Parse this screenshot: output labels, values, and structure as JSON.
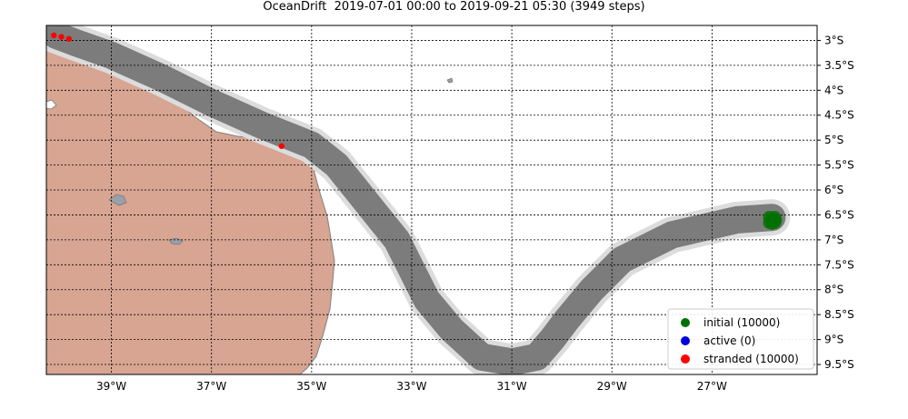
{
  "title": "OceanDrift  2019-07-01 00:00 to 2019-09-21 05:30 (3949 steps)",
  "map": {
    "projection": "PlateCarree",
    "lon_range": [
      -40.3,
      -24.9
    ],
    "lat_range": [
      -9.7,
      -2.7
    ],
    "grid": true,
    "land_color": "#d7a592",
    "coast_color": "#808080",
    "ocean_color": "#ffffff",
    "trajectory_color": "#7c7c7c",
    "lon_ticks": [
      {
        "value": -39,
        "label": "39°W"
      },
      {
        "value": -37,
        "label": "37°W"
      },
      {
        "value": -35,
        "label": "35°W"
      },
      {
        "value": -33,
        "label": "33°W"
      },
      {
        "value": -31,
        "label": "31°W"
      },
      {
        "value": -29,
        "label": "29°W"
      },
      {
        "value": -27,
        "label": "27°W"
      }
    ],
    "lat_ticks": [
      {
        "value": -3.0,
        "label": "3°S"
      },
      {
        "value": -3.5,
        "label": "3.5°S"
      },
      {
        "value": -4.0,
        "label": "4°S"
      },
      {
        "value": -4.5,
        "label": "4.5°S"
      },
      {
        "value": -5.0,
        "label": "5°S"
      },
      {
        "value": -5.5,
        "label": "5.5°S"
      },
      {
        "value": -6.0,
        "label": "6°S"
      },
      {
        "value": -6.5,
        "label": "6.5°S"
      },
      {
        "value": -7.0,
        "label": "7°S"
      },
      {
        "value": -7.5,
        "label": "7.5°S"
      },
      {
        "value": -8.0,
        "label": "8°S"
      },
      {
        "value": -8.5,
        "label": "8.5°S"
      },
      {
        "value": -9.0,
        "label": "9°S"
      },
      {
        "value": -9.5,
        "label": "9.5°S"
      }
    ],
    "trajectory": [
      {
        "lon": -25.8,
        "lat": -6.55
      },
      {
        "lon": -26.5,
        "lat": -6.6
      },
      {
        "lon": -27.8,
        "lat": -6.9
      },
      {
        "lon": -28.8,
        "lat": -7.4
      },
      {
        "lon": -29.4,
        "lat": -8.0
      },
      {
        "lon": -29.9,
        "lat": -8.6
      },
      {
        "lon": -30.2,
        "lat": -9.0
      },
      {
        "lon": -30.5,
        "lat": -9.35
      },
      {
        "lon": -31.0,
        "lat": -9.45
      },
      {
        "lon": -31.6,
        "lat": -9.35
      },
      {
        "lon": -32.2,
        "lat": -8.8
      },
      {
        "lon": -32.7,
        "lat": -8.2
      },
      {
        "lon": -33.0,
        "lat": -7.6
      },
      {
        "lon": -33.3,
        "lat": -7.0
      },
      {
        "lon": -33.7,
        "lat": -6.5
      },
      {
        "lon": -34.1,
        "lat": -6.0
      },
      {
        "lon": -34.5,
        "lat": -5.5
      },
      {
        "lon": -35.0,
        "lat": -5.1
      },
      {
        "lon": -36.0,
        "lat": -4.7
      },
      {
        "lon": -37.0,
        "lat": -4.25
      },
      {
        "lon": -38.0,
        "lat": -3.75
      },
      {
        "lon": -39.0,
        "lat": -3.3
      },
      {
        "lon": -39.7,
        "lat": -3.05
      },
      {
        "lon": -40.1,
        "lat": -2.9
      }
    ],
    "initial_point": {
      "lon": -25.8,
      "lat": -6.6
    },
    "stranded_points": [
      {
        "lon": -40.15,
        "lat": -2.9
      },
      {
        "lon": -40.0,
        "lat": -2.93
      },
      {
        "lon": -39.85,
        "lat": -2.97
      },
      {
        "lon": -35.6,
        "lat": -5.12
      }
    ]
  },
  "legend": {
    "placement": "lower-right",
    "items": [
      {
        "label": "initial (10000)",
        "color": "#007000"
      },
      {
        "label": "active (0)",
        "color": "#0000dd"
      },
      {
        "label": "stranded (10000)",
        "color": "#ff0000"
      }
    ]
  }
}
